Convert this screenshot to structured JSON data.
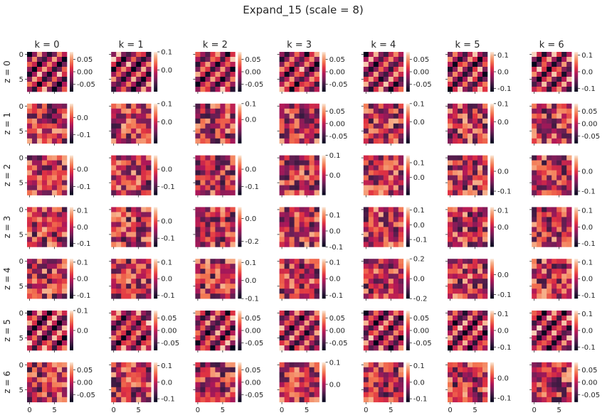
{
  "chart_data": {
    "type": "heatmap",
    "title": "Expand_15 (scale = 8)",
    "grid": false,
    "colormap": "rocket",
    "cell_grid": {
      "rows": 8,
      "cols": 8
    },
    "col_titles": [
      "k = 0",
      "k = 1",
      "k = 2",
      "k = 3",
      "k = 4",
      "k = 5",
      "k = 6"
    ],
    "row_labels": [
      "z = 0",
      "z = 1",
      "z = 2",
      "z = 3",
      "z = 4",
      "z = 5",
      "z = 6"
    ],
    "y_ticks": [
      "0",
      "5"
    ],
    "x_ticks": [
      "0",
      "5"
    ],
    "colorbars": [
      [
        {
          "ticks": [
            "0.05",
            "0.00",
            "-0.05"
          ],
          "range": [
            -0.08,
            0.08
          ]
        },
        {
          "ticks": [
            "0.1",
            "0.0"
          ],
          "range": [
            -0.12,
            0.1
          ]
        },
        {
          "ticks": [
            "0.05",
            "0.00",
            "-0.05"
          ],
          "range": [
            -0.08,
            0.08
          ]
        },
        {
          "ticks": [
            "0.05",
            "0.00",
            "-0.05"
          ],
          "range": [
            -0.08,
            0.08
          ]
        },
        {
          "ticks": [
            "0.05",
            "0.00",
            "-0.05"
          ],
          "range": [
            -0.08,
            0.08
          ]
        },
        {
          "ticks": [
            "0.1",
            "0.0",
            "-0.1"
          ],
          "range": [
            -0.12,
            0.12
          ]
        },
        {
          "ticks": [
            "0.1",
            "0.0",
            "-0.1"
          ],
          "range": [
            -0.12,
            0.12
          ]
        }
      ],
      [
        {
          "ticks": [
            "0.0",
            "-0.1"
          ],
          "range": [
            -0.15,
            0.08
          ]
        },
        {
          "ticks": [
            "0.1",
            "0.0"
          ],
          "range": [
            -0.12,
            0.1
          ]
        },
        {
          "ticks": [
            "0.1",
            "0.0"
          ],
          "range": [
            -0.15,
            0.1
          ]
        },
        {
          "ticks": [
            "0.05",
            "0.00",
            "-0.05"
          ],
          "range": [
            -0.08,
            0.08
          ]
        },
        {
          "ticks": [
            "0.1",
            "0.0"
          ],
          "range": [
            -0.12,
            0.1
          ]
        },
        {
          "ticks": [
            "0.1",
            "0.0"
          ],
          "range": [
            -0.12,
            0.1
          ]
        },
        {
          "ticks": [
            "0.05",
            "0.00",
            "-0.05"
          ],
          "range": [
            -0.08,
            0.08
          ]
        }
      ],
      [
        {
          "ticks": [
            "0.0",
            "-0.1"
          ],
          "range": [
            -0.15,
            0.08
          ]
        },
        {
          "ticks": [
            "0.0",
            "-0.1"
          ],
          "range": [
            -0.15,
            0.08
          ]
        },
        {
          "ticks": [
            "0.0",
            "-0.1"
          ],
          "range": [
            -0.15,
            0.08
          ]
        },
        {
          "ticks": [
            "0.1",
            "0.0"
          ],
          "range": [
            -0.1,
            0.1
          ]
        },
        {
          "ticks": [
            "0.1",
            "0.0"
          ],
          "range": [
            -0.12,
            0.15
          ]
        },
        {
          "ticks": [
            "0.0",
            "-0.1"
          ],
          "range": [
            -0.12,
            0.08
          ]
        },
        {
          "ticks": [
            "0.0",
            "-0.1"
          ],
          "range": [
            -0.12,
            0.08
          ]
        }
      ],
      [
        {
          "ticks": [
            "0.1",
            "0.0",
            "-0.1"
          ],
          "range": [
            -0.12,
            0.12
          ]
        },
        {
          "ticks": [
            "0.0",
            "-0.1"
          ],
          "range": [
            -0.15,
            0.08
          ]
        },
        {
          "ticks": [
            "0.0",
            "-0.2"
          ],
          "range": [
            -0.25,
            0.1
          ]
        },
        {
          "ticks": [
            "0.1",
            "0.0",
            "-0.1"
          ],
          "range": [
            -0.1,
            0.15
          ]
        },
        {
          "ticks": [
            "0.1",
            "0.0",
            "-0.1"
          ],
          "range": [
            -0.15,
            0.12
          ]
        },
        {
          "ticks": [
            "0.1",
            "0.0"
          ],
          "range": [
            -0.12,
            0.12
          ]
        },
        {
          "ticks": [
            "0.1",
            "0.0",
            "-0.1"
          ],
          "range": [
            -0.12,
            0.12
          ]
        }
      ],
      [
        {
          "ticks": [
            "0.1",
            "0.0",
            "-0.1"
          ],
          "range": [
            -0.12,
            0.12
          ]
        },
        {
          "ticks": [
            "0.1",
            "0.0",
            "-0.1"
          ],
          "range": [
            -0.12,
            0.12
          ]
        },
        {
          "ticks": [
            "0.1",
            "0.0",
            "-0.1"
          ],
          "range": [
            -0.1,
            0.12
          ]
        },
        {
          "ticks": [
            "0.1",
            "0.0",
            "-0.1"
          ],
          "range": [
            -0.12,
            0.12
          ]
        },
        {
          "ticks": [
            "0.2",
            "0.0",
            "-0.2"
          ],
          "range": [
            -0.2,
            0.2
          ]
        },
        {
          "ticks": [
            "0.0",
            "-0.1"
          ],
          "range": [
            -0.12,
            0.08
          ]
        },
        {
          "ticks": [
            "0.1",
            "0.0",
            "-0.1"
          ],
          "range": [
            -0.12,
            0.12
          ]
        }
      ],
      [
        {
          "ticks": [
            "0.1",
            "0.0"
          ],
          "range": [
            -0.1,
            0.1
          ]
        },
        {
          "ticks": [
            "0.05",
            "0.00",
            "-0.05"
          ],
          "range": [
            -0.08,
            0.08
          ]
        },
        {
          "ticks": [
            "0.05",
            "0.00",
            "-0.05"
          ],
          "range": [
            -0.08,
            0.08
          ]
        },
        {
          "ticks": [
            "0.05",
            "0.00",
            "-0.05"
          ],
          "range": [
            -0.08,
            0.08
          ]
        },
        {
          "ticks": [
            "0.05",
            "0.00",
            "-0.05"
          ],
          "range": [
            -0.08,
            0.08
          ]
        },
        {
          "ticks": [
            "0.1",
            "0.0",
            "-0.1"
          ],
          "range": [
            -0.12,
            0.12
          ]
        },
        {
          "ticks": [
            "0.1",
            "0.0",
            "-0.1"
          ],
          "range": [
            -0.12,
            0.12
          ]
        }
      ],
      [
        {
          "ticks": [
            "0.05",
            "0.00",
            "-0.05"
          ],
          "range": [
            -0.08,
            0.08
          ]
        },
        {
          "ticks": [
            "0.1",
            "0.0",
            "-0.1"
          ],
          "range": [
            -0.12,
            0.12
          ]
        },
        {
          "ticks": [
            "0.05",
            "0.00",
            "-0.05"
          ],
          "range": [
            -0.08,
            0.08
          ]
        },
        {
          "ticks": [
            "0.1",
            "0.0"
          ],
          "range": [
            -0.08,
            0.1
          ]
        },
        {
          "ticks": [
            "0.1",
            "0.0",
            "-0.1"
          ],
          "range": [
            -0.12,
            0.12
          ]
        },
        {
          "ticks": [
            "0.0",
            "-0.1"
          ],
          "range": [
            -0.12,
            0.08
          ]
        },
        {
          "ticks": [
            "0.05",
            "0.00",
            "-0.05"
          ],
          "range": [
            -0.08,
            0.08
          ]
        }
      ]
    ]
  }
}
